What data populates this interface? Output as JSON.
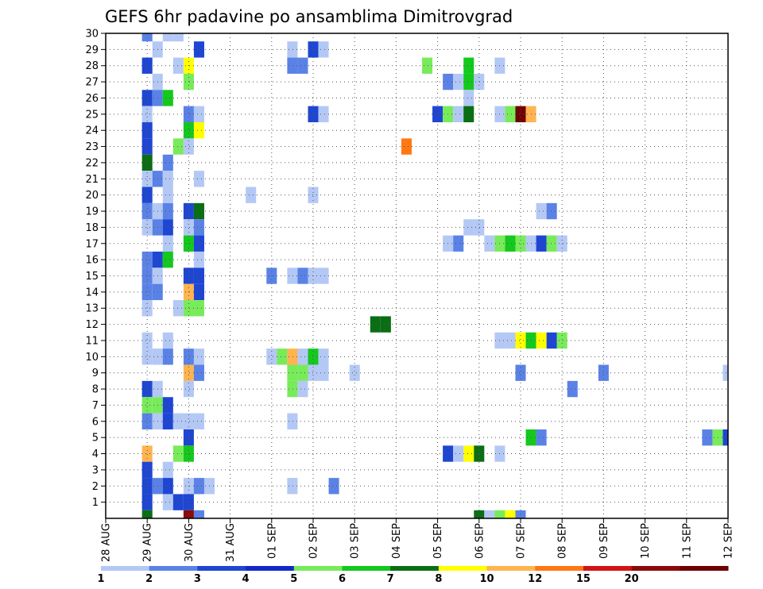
{
  "chart_data": {
    "type": "heatmap",
    "title": "GEFS 6hr padavine po ansamblima Dimitrovgrad",
    "xlabel": "",
    "ylabel": "",
    "x_ticks": [
      "28 AUG",
      "29 AUG",
      "30 AUG",
      "31 AUG",
      "01 SEP",
      "02 SEP",
      "03 SEP",
      "04 SEP",
      "05 SEP",
      "06 SEP",
      "07 SEP",
      "08 SEP",
      "09 SEP",
      "10 SEP",
      "11 SEP",
      "12 SEP"
    ],
    "y_ticks": [
      "1",
      "2",
      "3",
      "4",
      "5",
      "6",
      "7",
      "8",
      "9",
      "10",
      "11",
      "12",
      "13",
      "14",
      "15",
      "16",
      "17",
      "18",
      "19",
      "20",
      "21",
      "22",
      "23",
      "24",
      "25",
      "26",
      "27",
      "28",
      "29",
      "30"
    ],
    "xlim": [
      0,
      15
    ],
    "ylim": [
      0,
      30
    ],
    "x_units": "days since 28 AUG 00Z (6hr steps)",
    "grid": true,
    "colorbar": {
      "labels": [
        "1",
        "2",
        "3",
        "4",
        "5",
        "6",
        "7",
        "8",
        "10",
        "12",
        "15",
        "20"
      ],
      "colors": [
        "#b4c8f5",
        "#5a82e6",
        "#1e46d2",
        "#1428c8",
        "#78eb5a",
        "#14c81e",
        "#0a6e14",
        "#ffff00",
        "#ffb450",
        "#ff7814",
        "#d21414",
        "#8c0a0a",
        "#6e0000"
      ]
    },
    "cells": [
      [
        1,
        30,
        1
      ],
      [
        1.5,
        30,
        0
      ],
      [
        1.75,
        30,
        0
      ],
      [
        1.25,
        29,
        0
      ],
      [
        2.25,
        29,
        2
      ],
      [
        4.5,
        29,
        0
      ],
      [
        5,
        29,
        2
      ],
      [
        5.25,
        29,
        0
      ],
      [
        1,
        28,
        2
      ],
      [
        1.75,
        28,
        0
      ],
      [
        2,
        28,
        7
      ],
      [
        4.5,
        28,
        1
      ],
      [
        4.75,
        28,
        1
      ],
      [
        7.75,
        28,
        4
      ],
      [
        8.75,
        28,
        5
      ],
      [
        9.5,
        28,
        0
      ],
      [
        1.25,
        27,
        0
      ],
      [
        2,
        27,
        4
      ],
      [
        8.25,
        27,
        1
      ],
      [
        8.5,
        27,
        0
      ],
      [
        8.75,
        27,
        5
      ],
      [
        9,
        27,
        0
      ],
      [
        1,
        26,
        2
      ],
      [
        1.25,
        26,
        1
      ],
      [
        1.5,
        26,
        5
      ],
      [
        8.75,
        26,
        0
      ],
      [
        1,
        25,
        0
      ],
      [
        2,
        25,
        1
      ],
      [
        2.25,
        25,
        0
      ],
      [
        5,
        25,
        2
      ],
      [
        5.25,
        25,
        0
      ],
      [
        8,
        25,
        2
      ],
      [
        8.25,
        25,
        4
      ],
      [
        8.5,
        25,
        0
      ],
      [
        8.75,
        25,
        6
      ],
      [
        9.5,
        25,
        0
      ],
      [
        9.75,
        25,
        4
      ],
      [
        10,
        25,
        12
      ],
      [
        10.25,
        25,
        8
      ],
      [
        1,
        24,
        2
      ],
      [
        2,
        24,
        5
      ],
      [
        2.25,
        24,
        7
      ],
      [
        1,
        23,
        2
      ],
      [
        1.75,
        23,
        4
      ],
      [
        2,
        23,
        0
      ],
      [
        7.25,
        23,
        9
      ],
      [
        1,
        22,
        6
      ],
      [
        1.5,
        22,
        1
      ],
      [
        1,
        21,
        0
      ],
      [
        1.25,
        21,
        1
      ],
      [
        1.5,
        21,
        0
      ],
      [
        2.25,
        21,
        0
      ],
      [
        1,
        20,
        2
      ],
      [
        1.5,
        20,
        0
      ],
      [
        3.5,
        20,
        0
      ],
      [
        5,
        20,
        0
      ],
      [
        1,
        19,
        1
      ],
      [
        1.25,
        19,
        0
      ],
      [
        1.5,
        19,
        1
      ],
      [
        2,
        19,
        2
      ],
      [
        2.25,
        19,
        6
      ],
      [
        10.5,
        19,
        0
      ],
      [
        10.75,
        19,
        1
      ],
      [
        1,
        18,
        0
      ],
      [
        1.25,
        18,
        1
      ],
      [
        1.5,
        18,
        2
      ],
      [
        2,
        18,
        0
      ],
      [
        2.25,
        18,
        1
      ],
      [
        8.75,
        18,
        0
      ],
      [
        9,
        18,
        0
      ],
      [
        1.5,
        17,
        0
      ],
      [
        2,
        17,
        5
      ],
      [
        2.25,
        17,
        2
      ],
      [
        8.25,
        17,
        0
      ],
      [
        8.5,
        17,
        1
      ],
      [
        9.25,
        17,
        0
      ],
      [
        9.5,
        17,
        4
      ],
      [
        9.75,
        17,
        5
      ],
      [
        10,
        17,
        4
      ],
      [
        10.25,
        17,
        0
      ],
      [
        10.5,
        17,
        2
      ],
      [
        10.75,
        17,
        4
      ],
      [
        11,
        17,
        0
      ],
      [
        1,
        16,
        1
      ],
      [
        1.25,
        16,
        2
      ],
      [
        1.5,
        16,
        5
      ],
      [
        2.25,
        16,
        0
      ],
      [
        1,
        15,
        1
      ],
      [
        1.25,
        15,
        0
      ],
      [
        2,
        15,
        2
      ],
      [
        2.25,
        15,
        2
      ],
      [
        4,
        15,
        1
      ],
      [
        4.5,
        15,
        0
      ],
      [
        4.75,
        15,
        1
      ],
      [
        5,
        15,
        0
      ],
      [
        5.25,
        15,
        0
      ],
      [
        1,
        14,
        1
      ],
      [
        1.25,
        14,
        1
      ],
      [
        2,
        14,
        8
      ],
      [
        2.25,
        14,
        2
      ],
      [
        1,
        13,
        0
      ],
      [
        1.75,
        13,
        0
      ],
      [
        2,
        13,
        4
      ],
      [
        2.25,
        13,
        4
      ],
      [
        6.5,
        12,
        6
      ],
      [
        6.75,
        12,
        6
      ],
      [
        1,
        11,
        0
      ],
      [
        1.5,
        11,
        0
      ],
      [
        9.5,
        11,
        0
      ],
      [
        9.75,
        11,
        0
      ],
      [
        10,
        11,
        7
      ],
      [
        10.25,
        11,
        5
      ],
      [
        10.5,
        11,
        7
      ],
      [
        10.75,
        11,
        2
      ],
      [
        11,
        11,
        4
      ],
      [
        1,
        10,
        0
      ],
      [
        1.25,
        10,
        0
      ],
      [
        1.5,
        10,
        1
      ],
      [
        2,
        10,
        1
      ],
      [
        2.25,
        10,
        0
      ],
      [
        4,
        10,
        0
      ],
      [
        4.25,
        10,
        4
      ],
      [
        4.5,
        10,
        8
      ],
      [
        4.75,
        10,
        0
      ],
      [
        5,
        10,
        5
      ],
      [
        5.25,
        10,
        0
      ],
      [
        2,
        9,
        8
      ],
      [
        2.25,
        9,
        1
      ],
      [
        4.5,
        9,
        4
      ],
      [
        4.75,
        9,
        4
      ],
      [
        5,
        9,
        0
      ],
      [
        5.25,
        9,
        0
      ],
      [
        6,
        9,
        0
      ],
      [
        10,
        9,
        1
      ],
      [
        12,
        9,
        1
      ],
      [
        15,
        9,
        0
      ],
      [
        1,
        8,
        2
      ],
      [
        1.25,
        8,
        0
      ],
      [
        2,
        8,
        0
      ],
      [
        4.5,
        8,
        4
      ],
      [
        4.75,
        8,
        0
      ],
      [
        11.25,
        8,
        1
      ],
      [
        1,
        7,
        4
      ],
      [
        1.25,
        7,
        4
      ],
      [
        1.5,
        7,
        2
      ],
      [
        1,
        6,
        1
      ],
      [
        1.25,
        6,
        0
      ],
      [
        1.5,
        6,
        2
      ],
      [
        1.75,
        6,
        0
      ],
      [
        2,
        6,
        0
      ],
      [
        2.25,
        6,
        0
      ],
      [
        4.5,
        6,
        0
      ],
      [
        2,
        5,
        2
      ],
      [
        10.25,
        5,
        5
      ],
      [
        10.5,
        5,
        1
      ],
      [
        14.5,
        5,
        1
      ],
      [
        14.75,
        5,
        4
      ],
      [
        15,
        5,
        2
      ],
      [
        1,
        4,
        8
      ],
      [
        1.75,
        4,
        4
      ],
      [
        2,
        4,
        5
      ],
      [
        8.25,
        4,
        2
      ],
      [
        8.5,
        4,
        0
      ],
      [
        8.75,
        4,
        7
      ],
      [
        9,
        4,
        6
      ],
      [
        9.5,
        4,
        0
      ],
      [
        1,
        3,
        2
      ],
      [
        1.5,
        3,
        0
      ],
      [
        1,
        2,
        2
      ],
      [
        1.25,
        2,
        1
      ],
      [
        1.5,
        2,
        2
      ],
      [
        2,
        2,
        0
      ],
      [
        2.25,
        2,
        1
      ],
      [
        2.5,
        2,
        0
      ],
      [
        4.5,
        2,
        0
      ],
      [
        5.5,
        2,
        1
      ],
      [
        1,
        1,
        2
      ],
      [
        1.5,
        1,
        0
      ],
      [
        1.75,
        1,
        2
      ],
      [
        2,
        1,
        2
      ],
      [
        1,
        0,
        6
      ],
      [
        2,
        0,
        11
      ],
      [
        2.25,
        0,
        1
      ],
      [
        9,
        0,
        6
      ],
      [
        9.25,
        0,
        0
      ],
      [
        9.5,
        0,
        4
      ],
      [
        9.75,
        0,
        7
      ],
      [
        10,
        0,
        1
      ]
    ]
  }
}
